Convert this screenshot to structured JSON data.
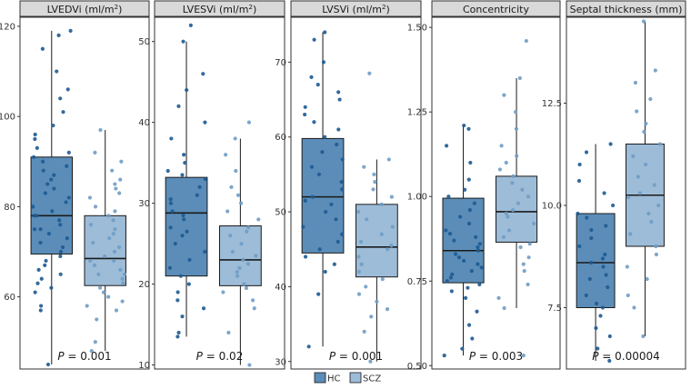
{
  "colors": {
    "hc_fill": "#5b8db8",
    "hc_point": "#1d5a92",
    "scz_fill": "#9dbcd8",
    "scz_point": "#6f9cc4",
    "strip_bg": "#d9d9d9",
    "text": "#333333"
  },
  "legend": {
    "hc_label": "HC",
    "scz_label": "SCZ"
  },
  "chart_data": [
    {
      "type": "boxplot",
      "title_main": "LVEDVi (ml/m",
      "title_sup": "2",
      "title_end": ")",
      "p_italic": "P",
      "p_value": " = 0.001",
      "ylim": [
        44,
        122
      ],
      "ticks": [
        60,
        80,
        100,
        120
      ],
      "tick_labels": [
        "60",
        "80",
        "100",
        "120"
      ],
      "groups": [
        {
          "name": "HC",
          "whisker_low": 45,
          "q1": 69.5,
          "median": 78,
          "q3": 91,
          "whisker_high": 119,
          "points": [
            45,
            57,
            58,
            61,
            62,
            63,
            64,
            65,
            66,
            67,
            68,
            69,
            70,
            71,
            72,
            73,
            74,
            75,
            75,
            76,
            77,
            78,
            78,
            79,
            80,
            81,
            82,
            83,
            84,
            85,
            86,
            87,
            88,
            89,
            90,
            91,
            92,
            93,
            95,
            96,
            98,
            101,
            104,
            106,
            110,
            115,
            118,
            119
          ]
        },
        {
          "name": "SCZ",
          "whisker_low": 48,
          "q1": 62.5,
          "median": 68.5,
          "q3": 78,
          "whisker_high": 97,
          "points": [
            48,
            50,
            55,
            57,
            58,
            59,
            60,
            61,
            62,
            63,
            64,
            65,
            65,
            66,
            67,
            68,
            68,
            69,
            70,
            71,
            72,
            73,
            74,
            75,
            76,
            77,
            78,
            79,
            80,
            82,
            83,
            84,
            85,
            86,
            88,
            90,
            92,
            97
          ]
        }
      ]
    },
    {
      "type": "boxplot",
      "title_main": "LVESVi (ml/m",
      "title_sup": "2",
      "title_end": ")",
      "p_italic": "P",
      "p_value": " = 0.02",
      "ylim": [
        9.5,
        53
      ],
      "ticks": [
        10,
        20,
        30,
        40,
        50
      ],
      "tick_labels": [
        "10",
        "20",
        "30",
        "40",
        "50"
      ],
      "groups": [
        {
          "name": "HC",
          "whisker_low": 13.5,
          "q1": 21,
          "median": 28.8,
          "q3": 33.2,
          "whisker_high": 50,
          "points": [
            13.5,
            14,
            16,
            17,
            18,
            19,
            20,
            21,
            22,
            23,
            24,
            25,
            26,
            26.5,
            27,
            28,
            28.5,
            29,
            30,
            30.5,
            31,
            32,
            33,
            33.5,
            34,
            35,
            36,
            38,
            40,
            42,
            44,
            46,
            50,
            52
          ]
        },
        {
          "name": "SCZ",
          "whisker_low": 10,
          "q1": 19.8,
          "median": 23,
          "q3": 27.2,
          "whisker_high": 38,
          "points": [
            10,
            14,
            17,
            18,
            19,
            19.5,
            20,
            21,
            21.5,
            22,
            22.5,
            23,
            23.5,
            24,
            25,
            26,
            26.5,
            27,
            28,
            29,
            30,
            31,
            32,
            34,
            36,
            38,
            40
          ]
        }
      ]
    },
    {
      "type": "boxplot",
      "title_main": "LVSVi (ml/m",
      "title_sup": "2",
      "title_end": ")",
      "p_italic": "P",
      "p_value": " = 0.001",
      "ylim": [
        29,
        76
      ],
      "ticks": [
        30,
        40,
        50,
        60,
        70
      ],
      "tick_labels": [
        "30",
        "40",
        "50",
        "60",
        "70"
      ],
      "groups": [
        {
          "name": "HC",
          "whisker_low": 32,
          "q1": 44.5,
          "median": 52,
          "q3": 59.8,
          "whisker_high": 74,
          "points": [
            32,
            39,
            42,
            43,
            44,
            45,
            46,
            47,
            48,
            49,
            50,
            51,
            51.5,
            52,
            53,
            54,
            55,
            56,
            57,
            58,
            59,
            60,
            61,
            62,
            63,
            64,
            65,
            66,
            67,
            68,
            70,
            73,
            74
          ]
        },
        {
          "name": "SCZ",
          "whisker_low": 30,
          "q1": 41.3,
          "median": 45.3,
          "q3": 51,
          "whisker_high": 57,
          "points": [
            30,
            34,
            36,
            37,
            38,
            39,
            40,
            41,
            42,
            43,
            44,
            45,
            45.5,
            46,
            47,
            48,
            49,
            50,
            51,
            52,
            53,
            54,
            55,
            56,
            57,
            68.5
          ]
        }
      ]
    },
    {
      "type": "boxplot",
      "title_main": "Concentricity",
      "title_sup": "",
      "title_end": "",
      "p_italic": "P",
      "p_value": " = 0.003",
      "ylim": [
        0.49,
        1.53
      ],
      "ticks": [
        0.5,
        0.75,
        1.0,
        1.25,
        1.5
      ],
      "tick_labels": [
        "0.50",
        "0.75",
        "1.00",
        "1.25",
        "1.50"
      ],
      "groups": [
        {
          "name": "HC",
          "whisker_low": 0.53,
          "q1": 0.745,
          "median": 0.84,
          "q3": 0.995,
          "whisker_high": 1.21,
          "points": [
            0.53,
            0.55,
            0.58,
            0.62,
            0.66,
            0.7,
            0.72,
            0.73,
            0.74,
            0.75,
            0.76,
            0.77,
            0.78,
            0.79,
            0.8,
            0.81,
            0.82,
            0.83,
            0.84,
            0.85,
            0.86,
            0.87,
            0.88,
            0.89,
            0.9,
            0.92,
            0.94,
            0.96,
            0.98,
            1.0,
            1.02,
            1.05,
            1.1,
            1.15,
            1.2,
            1.21
          ]
        },
        {
          "name": "SCZ",
          "whisker_low": 0.67,
          "q1": 0.865,
          "median": 0.955,
          "q3": 1.06,
          "whisker_high": 1.35,
          "points": [
            0.53,
            0.67,
            0.7,
            0.74,
            0.78,
            0.8,
            0.82,
            0.85,
            0.86,
            0.88,
            0.9,
            0.92,
            0.94,
            0.95,
            0.96,
            0.98,
            1.0,
            1.02,
            1.04,
            1.06,
            1.08,
            1.1,
            1.12,
            1.15,
            1.2,
            1.25,
            1.3,
            1.35,
            1.46
          ]
        }
      ]
    },
    {
      "type": "boxplot",
      "title_main": "Septal thickness (mm)",
      "title_sup": "",
      "title_end": "",
      "p_italic": "P",
      "p_value": " = 0.00004",
      "ylim": [
        6.0,
        14.6
      ],
      "ticks": [
        7.5,
        10.0,
        12.5
      ],
      "tick_labels": [
        "7.5",
        "10.0",
        "12.5"
      ],
      "groups": [
        {
          "name": "HC",
          "whisker_low": 6.2,
          "q1": 7.5,
          "median": 8.6,
          "q3": 9.8,
          "whisker_high": 11.5,
          "points": [
            6.2,
            6.5,
            6.8,
            7.0,
            7.3,
            7.5,
            7.6,
            7.8,
            8.0,
            8.2,
            8.3,
            8.5,
            8.6,
            8.7,
            8.8,
            9.0,
            9.2,
            9.4,
            9.5,
            9.7,
            9.8,
            10.0,
            10.3,
            10.6,
            11.0,
            11.3,
            11.5
          ]
        },
        {
          "name": "SCZ",
          "whisker_low": 6.8,
          "q1": 9.0,
          "median": 10.25,
          "q3": 11.5,
          "whisker_high": 14.5,
          "points": [
            6.8,
            7.5,
            7.8,
            8.2,
            8.5,
            8.8,
            9.0,
            9.3,
            9.6,
            9.8,
            10.0,
            10.2,
            10.3,
            10.5,
            10.7,
            11.0,
            11.2,
            11.5,
            11.8,
            12.0,
            12.3,
            12.6,
            13.0,
            13.3,
            14.5
          ]
        }
      ]
    }
  ]
}
